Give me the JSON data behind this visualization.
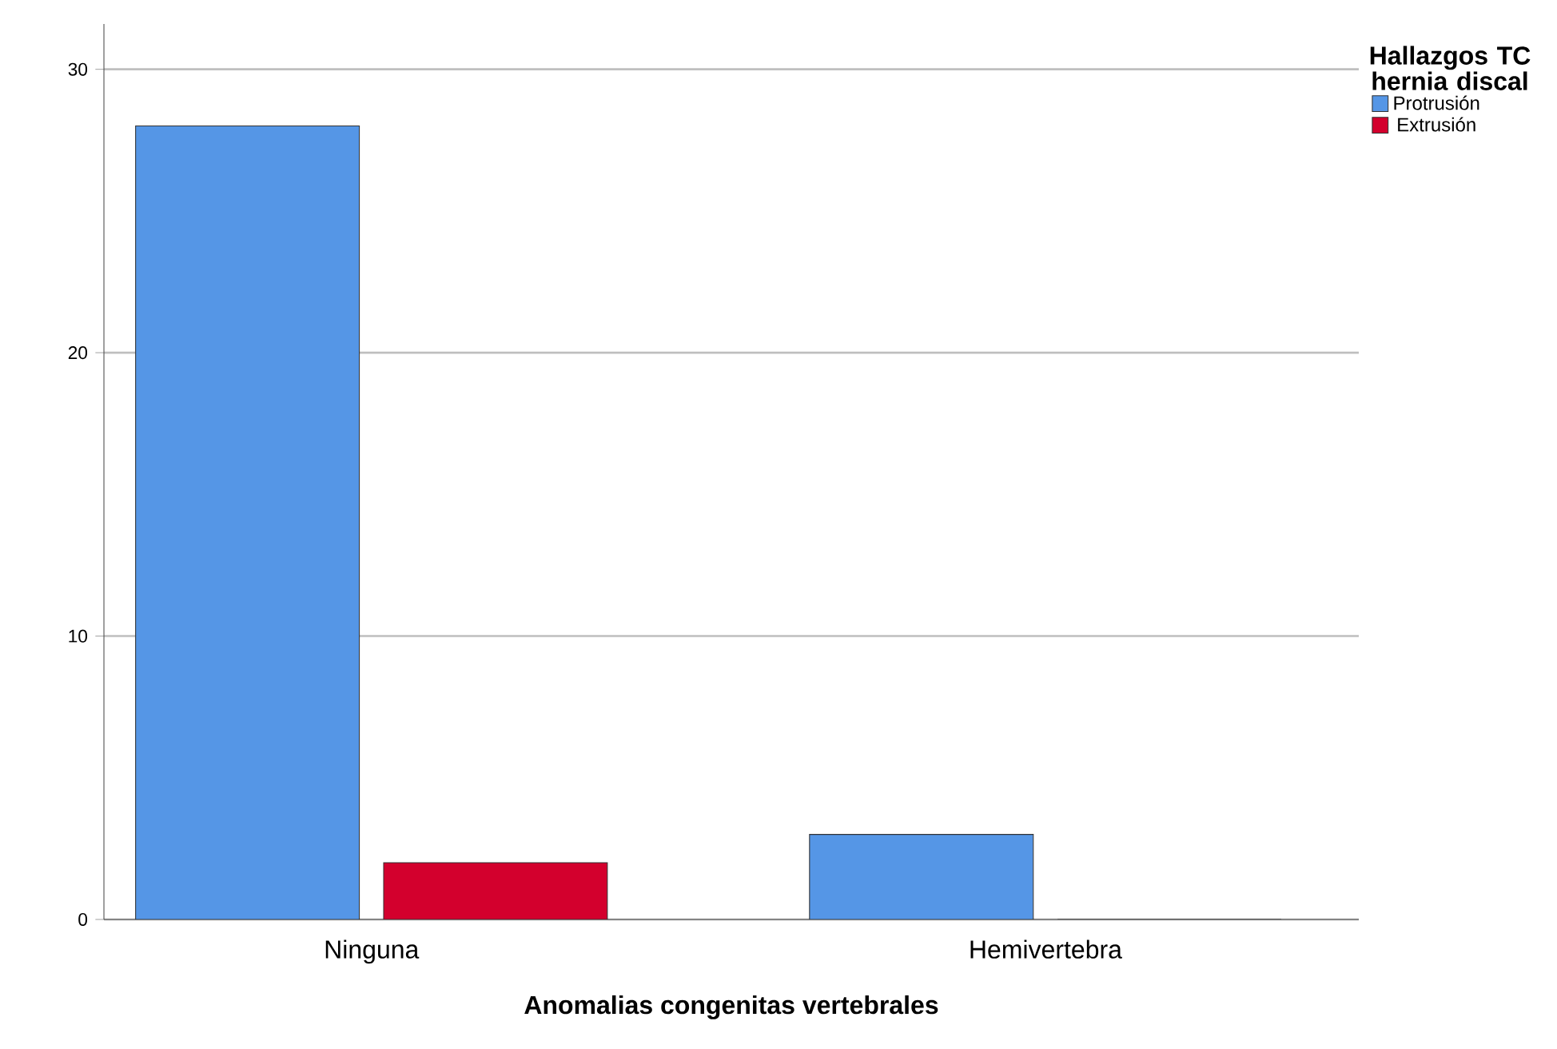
{
  "chart_data": {
    "type": "bar",
    "xlabel": "Anomalias congenitas vertebrales",
    "legend_title": "Hallazgos TC hernia discal",
    "categories": [
      "Ninguna",
      "Hemivertebra"
    ],
    "series": [
      {
        "name": "Protrusión",
        "color": "#5596e6",
        "values": [
          28,
          3
        ]
      },
      {
        "name": "Extrusión",
        "color": "#d3002d",
        "values": [
          2,
          0
        ]
      }
    ],
    "ylim": [
      0,
      31.6
    ],
    "yticks": [
      0,
      10,
      20,
      30
    ],
    "grid": "y",
    "legend": "top right"
  }
}
